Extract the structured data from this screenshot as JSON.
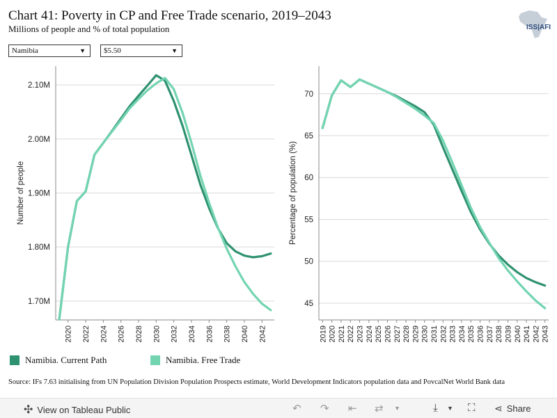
{
  "header": {
    "title": "Chart 41: Poverty in CP and Free Trade scenario, 2019–2043",
    "subtitle": "Millions of people and % of total population",
    "logo_text": "ISS|AFI"
  },
  "filters": {
    "country": "Namibia",
    "threshold": "$5.50"
  },
  "colors": {
    "current_path": "#2e9170",
    "free_trade": "#72d4b0",
    "grid": "#d9d9d9"
  },
  "chart_data": [
    {
      "type": "line",
      "ylabel": "Number of people",
      "xlabel": "",
      "ylim": [
        1.665,
        2.135
      ],
      "yticks": [
        1.7,
        1.8,
        1.9,
        2.0,
        2.1
      ],
      "ytick_labels": [
        "1.70M",
        "1.80M",
        "1.90M",
        "2.00M",
        "2.10M"
      ],
      "xlim": [
        2018.6,
        2043.4
      ],
      "xticks": [
        2020,
        2022,
        2024,
        2026,
        2028,
        2030,
        2032,
        2034,
        2036,
        2038,
        2040,
        2042
      ],
      "xtick_labels": [
        "2020",
        "2022",
        "2024",
        "2026",
        "2028",
        "2030",
        "2032",
        "2034",
        "2036",
        "2038",
        "2040",
        "2042"
      ],
      "x": [
        2019,
        2020,
        2021,
        2022,
        2023,
        2024,
        2025,
        2026,
        2027,
        2028,
        2029,
        2030,
        2031,
        2032,
        2033,
        2034,
        2035,
        2036,
        2037,
        2038,
        2039,
        2040,
        2041,
        2042,
        2043
      ],
      "series": [
        {
          "name": "Namibia. Current Path",
          "values": [
            1.666,
            1.8,
            1.885,
            1.903,
            1.971,
            1.993,
            2.015,
            2.038,
            2.061,
            2.08,
            2.099,
            2.118,
            2.108,
            2.07,
            2.024,
            1.97,
            1.916,
            1.872,
            1.835,
            1.807,
            1.792,
            1.784,
            1.781,
            1.783,
            1.788
          ]
        },
        {
          "name": "Namibia. Free Trade",
          "values": [
            1.666,
            1.8,
            1.885,
            1.903,
            1.971,
            1.993,
            2.014,
            2.035,
            2.057,
            2.074,
            2.09,
            2.103,
            2.113,
            2.092,
            2.048,
            1.993,
            1.933,
            1.882,
            1.836,
            1.797,
            1.764,
            1.735,
            1.713,
            1.695,
            1.683
          ]
        }
      ]
    },
    {
      "type": "line",
      "ylabel": "Percentage of population (%)",
      "xlabel": "",
      "ylim": [
        43.0,
        73.3
      ],
      "yticks": [
        45,
        50,
        55,
        60,
        65,
        70
      ],
      "ytick_labels": [
        "45",
        "50",
        "55",
        "60",
        "65",
        "70"
      ],
      "xlim": [
        2018.6,
        2043.4
      ],
      "xticks": [
        2019,
        2020,
        2021,
        2022,
        2023,
        2024,
        2025,
        2026,
        2027,
        2028,
        2029,
        2030,
        2031,
        2032,
        2033,
        2034,
        2035,
        2036,
        2037,
        2038,
        2039,
        2040,
        2041,
        2042,
        2043
      ],
      "xtick_labels": [
        "2019",
        "2020",
        "2021",
        "2022",
        "2023",
        "2024",
        "2025",
        "2026",
        "2027",
        "2028",
        "2029",
        "2030",
        "2031",
        "2032",
        "2033",
        "2034",
        "2035",
        "2036",
        "2037",
        "2038",
        "2039",
        "2040",
        "2041",
        "2042",
        "2043"
      ],
      "x": [
        2019,
        2020,
        2021,
        2022,
        2023,
        2024,
        2025,
        2026,
        2027,
        2028,
        2029,
        2030,
        2031,
        2032,
        2033,
        2034,
        2035,
        2036,
        2037,
        2038,
        2039,
        2040,
        2041,
        2042,
        2043
      ],
      "series": [
        {
          "name": "Namibia. Current Path",
          "values": [
            65.9,
            69.8,
            71.6,
            70.8,
            71.7,
            71.2,
            70.7,
            70.2,
            69.7,
            69.1,
            68.5,
            67.8,
            66.3,
            63.6,
            61.0,
            58.4,
            55.9,
            53.8,
            52.1,
            50.7,
            49.6,
            48.7,
            48.0,
            47.5,
            47.1
          ]
        },
        {
          "name": "Namibia. Free Trade",
          "values": [
            65.9,
            69.8,
            71.6,
            70.8,
            71.7,
            71.2,
            70.7,
            70.2,
            69.6,
            68.9,
            68.2,
            67.4,
            66.5,
            64.4,
            61.8,
            59.1,
            56.4,
            54.1,
            52.2,
            50.4,
            48.9,
            47.6,
            46.4,
            45.3,
            44.4
          ]
        }
      ]
    }
  ],
  "legend": {
    "current_label": "Namibia. Current Path",
    "free_label": "Namibia. Free Trade"
  },
  "source": "Source: IFs 7.63 initialising from UN Population Division Population Prospects estimate, World Development Indicators population data and PovcalNet World Bank data",
  "footer": {
    "view_label": "View on Tableau Public",
    "share_label": "Share"
  }
}
